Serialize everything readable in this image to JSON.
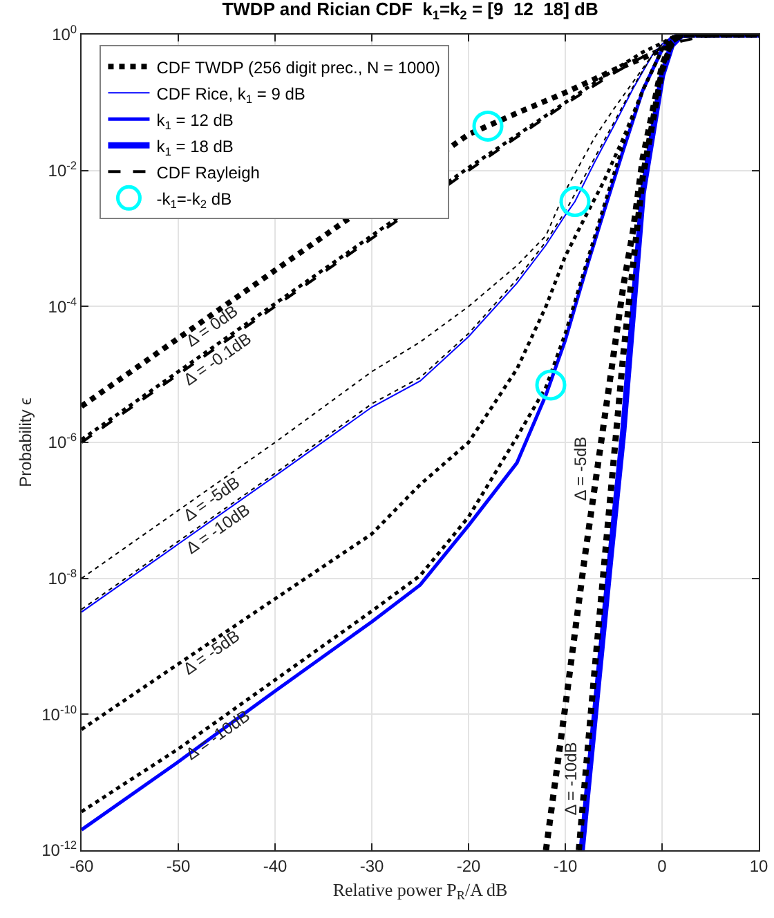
{
  "chart_data": {
    "type": "line",
    "title": "TWDP and Rician CDF  k$_{1}$=k$_{2}$ = [9  12  18] dB",
    "xlabel": "Relative power P$_{R}$/A dB",
    "ylabel": "Probability ϵ",
    "xlim": [
      -60,
      10
    ],
    "xticks": [
      -60,
      -50,
      -40,
      -30,
      -20,
      -10,
      0,
      10
    ],
    "ylim": [
      1e-12,
      1
    ],
    "yticks": [
      {
        "value": 1e-12,
        "label": "10$^{-12}$"
      },
      {
        "value": 1e-10,
        "label": "10$^{-10}$"
      },
      {
        "value": 1e-08,
        "label": "10$^{-8}$"
      },
      {
        "value": 1e-06,
        "label": "10$^{-6}$"
      },
      {
        "value": 0.0001,
        "label": "10$^{-4}$"
      },
      {
        "value": 0.01,
        "label": "10$^{-2}$"
      },
      {
        "value": 1,
        "label": "10$^{0}$"
      }
    ],
    "log": "y",
    "grid": true,
    "legend": "top left",
    "series": [
      {
        "name": "CDF TWDP (256 digit prec., N = 1000)",
        "color": "#000000",
        "line_style": "dotted",
        "x": [
          -60,
          -50,
          -40,
          -20,
          -15,
          -10,
          -5,
          -2,
          0,
          1,
          2,
          5,
          10
        ],
        "values": [
          3.4e-06,
          3.4e-05,
          0.00034,
          0.034,
          0.07,
          0.14,
          0.3,
          0.45,
          0.6,
          0.8,
          1,
          1,
          1
        ]
      },
      {
        "name": "CDF Rice, k$_{1}$ = 9 dB",
        "color": "#0000ff",
        "line_style": "solid",
        "x": [
          -60,
          -50,
          -40,
          -30,
          -25,
          -20,
          -15,
          -12,
          -10,
          -9,
          -7,
          -5,
          -3,
          -1,
          0,
          1,
          2,
          10
        ],
        "values": [
          3.2e-09,
          3.2e-08,
          3.2e-07,
          3.3e-06,
          8e-06,
          3.6e-05,
          0.00022,
          0.0008,
          0.0022,
          0.0035,
          0.013,
          0.045,
          0.16,
          0.5,
          0.72,
          0.93,
          1,
          1
        ]
      },
      {
        "name": "k$_{1}$ = 12 dB",
        "color": "#0000ff",
        "line_style": "solid",
        "x": [
          -60,
          -50,
          -40,
          -30,
          -25,
          -20,
          -15,
          -12,
          -10,
          -8,
          -6,
          -4,
          -2,
          0,
          1,
          2,
          10
        ],
        "values": [
          2e-12,
          2e-11,
          2.2e-10,
          2.3e-09,
          8e-09,
          6e-08,
          5e-07,
          5e-06,
          3.2e-05,
          0.0003,
          0.0025,
          0.02,
          0.15,
          0.6,
          0.9,
          1,
          1
        ]
      },
      {
        "name": "k$_{1}$ = 18 dB",
        "color": "#0000ff",
        "line_style": "solid",
        "x": [
          -8.3,
          -7,
          -5.3,
          -4,
          -2,
          0,
          1,
          2,
          3,
          10
        ],
        "values": [
          1e-12,
          8e-11,
          2.3e-08,
          1.5e-06,
          0.0046,
          0.25,
          0.7,
          0.98,
          1,
          1
        ]
      },
      {
        "name": "CDF Rayleigh",
        "color": "#000000",
        "line_style": "dashed",
        "x": [
          -60,
          -50,
          -40,
          -20,
          -15,
          -10,
          -5,
          -2,
          0,
          2,
          4,
          6,
          10
        ],
        "values": [
          1e-06,
          1e-05,
          0.0001,
          0.01,
          0.031,
          0.095,
          0.27,
          0.47,
          0.63,
          0.8,
          0.92,
          0.98,
          1
        ]
      },
      {
        "name": "-k$_{1}$=-k$_{2}$ dB",
        "type": "scatter",
        "marker": "circle",
        "color": "#00ffff",
        "x": [
          -18,
          -9,
          -11.5
        ],
        "values": [
          0.045,
          0.0035,
          7e-06
        ]
      },
      {
        "color": "#000000",
        "line_style": "dotted",
        "x": [
          -60,
          -50,
          -40,
          -20,
          -15,
          -10,
          -5,
          -2,
          0,
          1,
          2,
          5,
          10
        ],
        "values": [
          1.1e-06,
          1.1e-05,
          0.00011,
          0.011,
          0.033,
          0.1,
          0.3,
          0.55,
          0.75,
          0.9,
          1,
          1,
          1
        ]
      },
      {
        "color": "#000000",
        "line_style": "dotted",
        "x": [
          -60,
          -50,
          -40,
          -30,
          -25,
          -20,
          -15,
          -12,
          -10,
          -7,
          -5,
          -3,
          -1,
          0,
          1,
          2,
          10
        ],
        "values": [
          1e-08,
          1e-07,
          1e-06,
          1.1e-05,
          3e-05,
          0.0001,
          0.0004,
          0.0011,
          0.005,
          0.03,
          0.08,
          0.2,
          0.5,
          0.7,
          0.93,
          1,
          1
        ]
      },
      {
        "color": "#000000",
        "line_style": "dotted",
        "x": [
          -60,
          -50,
          -40,
          -30,
          -25,
          -20,
          -15,
          -12,
          -10,
          -7,
          -5,
          -3,
          -1,
          0,
          1,
          2,
          10
        ],
        "values": [
          3.5e-09,
          3.5e-08,
          3.5e-07,
          3.7e-06,
          9e-06,
          4e-05,
          0.00025,
          0.0009,
          0.0025,
          0.015,
          0.05,
          0.17,
          0.5,
          0.72,
          0.93,
          1,
          1
        ]
      },
      {
        "color": "#000000",
        "line_style": "dotted",
        "x": [
          -60,
          -50,
          -40,
          -30,
          -25,
          -20,
          -15,
          -12,
          -10,
          -8,
          -6,
          -4,
          -2,
          0,
          1,
          2,
          10
        ],
        "values": [
          6e-11,
          5.5e-10,
          5e-09,
          4.5e-08,
          2.4e-07,
          1e-06,
          1.2e-05,
          0.0001,
          0.00055,
          0.002,
          0.007,
          0.03,
          0.15,
          0.6,
          0.9,
          1,
          1
        ]
      },
      {
        "color": "#000000",
        "line_style": "dotted",
        "x": [
          -60,
          -50,
          -40,
          -30,
          -25,
          -20,
          -15,
          -12,
          -10,
          -8,
          -6,
          -4,
          -2,
          0,
          1,
          2,
          10
        ],
        "values": [
          3.7e-12,
          3.1e-11,
          3.2e-10,
          3.3e-09,
          1.1e-08,
          8e-08,
          1.2e-06,
          6.5e-06,
          4e-05,
          0.00035,
          0.003,
          0.025,
          0.15,
          0.6,
          0.9,
          1,
          1
        ]
      },
      {
        "color": "#000000",
        "line_style": "dotted",
        "x": [
          -12,
          -10,
          -8,
          -6,
          -4,
          -3,
          -2,
          0,
          1,
          2,
          10
        ],
        "values": [
          1e-12,
          1.3e-10,
          2e-08,
          2e-06,
          0.0002,
          0.0013,
          0.015,
          0.35,
          0.8,
          1,
          1
        ]
      },
      {
        "color": "#000000",
        "line_style": "dotted",
        "x": [
          -8.6,
          -7,
          -6,
          -4,
          -2,
          0,
          1,
          2,
          10
        ],
        "values": [
          1e-12,
          4e-10,
          1.5e-08,
          2e-05,
          0.008,
          0.3,
          0.75,
          1,
          1
        ]
      }
    ],
    "annotations": [
      {
        "text": "Δ = 0dB",
        "x": -50,
        "y": 3.4e-05
      },
      {
        "text": "Δ = -0.1dB",
        "x": -50,
        "y": 1.1e-05
      },
      {
        "text": "Δ = -5dB",
        "x": -50,
        "y": 1e-07
      },
      {
        "text": "Δ = -10dB",
        "x": -50,
        "y": 3.5e-08
      },
      {
        "text": "Δ = -5dB",
        "x": -50,
        "y": 5.5e-10
      },
      {
        "text": "Δ = -10dB",
        "x": -50,
        "y": 3.1e-11
      },
      {
        "text": "Δ = -5dB",
        "x": -6,
        "y": 2e-06
      },
      {
        "text": "Δ = -10dB",
        "x": -8.6,
        "y": 1e-12
      }
    ]
  }
}
